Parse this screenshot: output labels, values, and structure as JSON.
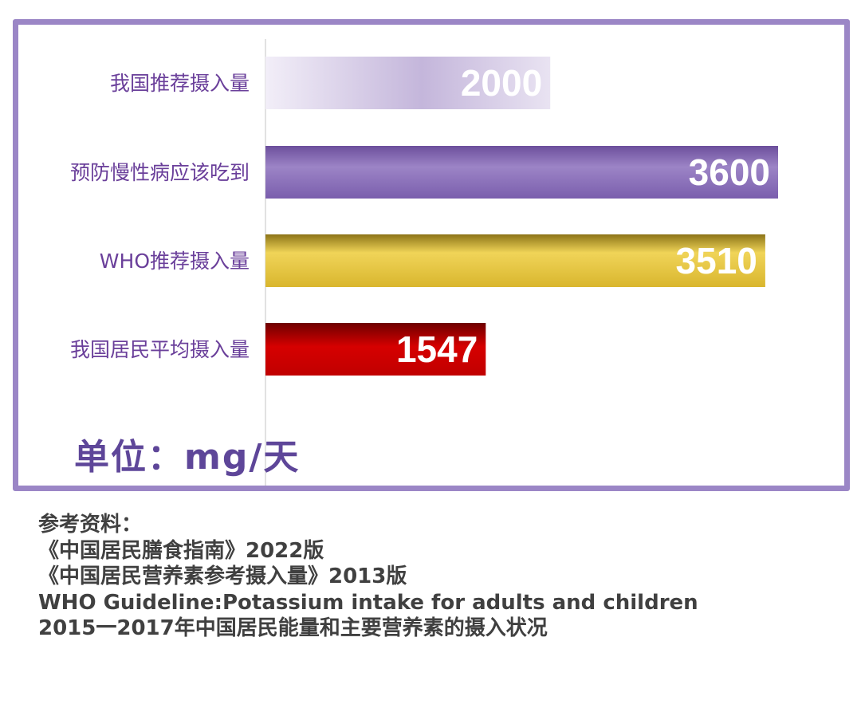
{
  "chart_data": {
    "type": "bar",
    "orientation": "horizontal",
    "categories": [
      "我国推荐摄入量",
      "预防慢性病应该吃到",
      "WHO推荐摄入量",
      "我国居民平均摄入量"
    ],
    "values": [
      2000,
      3600,
      3510,
      1547
    ],
    "bar_colors": [
      "#c9bddc",
      "#8a6cb8",
      "#e2c544",
      "#c80000"
    ],
    "unit_label": "单位：mg/天",
    "grid": false,
    "legend": "none"
  },
  "references": {
    "heading": "参考资料：",
    "items": [
      "《中国居民膳食指南》2022版",
      "《中国居民营养素参考摄入量》2013版",
      "WHO Guideline:Potassium intake for adults and  children",
      "2015一2017年中国居民能量和主要营养素的摄入状况"
    ]
  }
}
